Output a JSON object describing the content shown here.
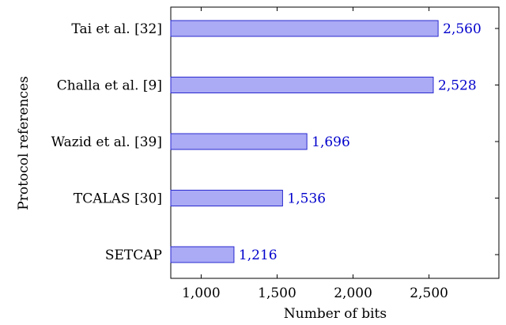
{
  "chart_data": {
    "type": "bar",
    "orientation": "horizontal",
    "categories": [
      "Tai et al. [32]",
      "Challa et al. [9]",
      "Wazid et al. [39]",
      "TCALAS [30]",
      "SETCAP"
    ],
    "values": [
      2560,
      2528,
      1696,
      1536,
      1216
    ],
    "value_labels": [
      "2,560",
      "2,528",
      "1,696",
      "1,536",
      "1,216"
    ],
    "xlabel": "Number of bits",
    "ylabel": "Protocol references",
    "xlim": [
      800,
      2960
    ],
    "xticks": [
      1000,
      1500,
      2000,
      2500
    ],
    "xtick_labels": [
      "1,000",
      "1,500",
      "2,000",
      "2,500"
    ],
    "grid": false,
    "bar_fill": "#aaaaf5",
    "bar_stroke": "#2a2ad0",
    "label_color": "#0000cc"
  }
}
